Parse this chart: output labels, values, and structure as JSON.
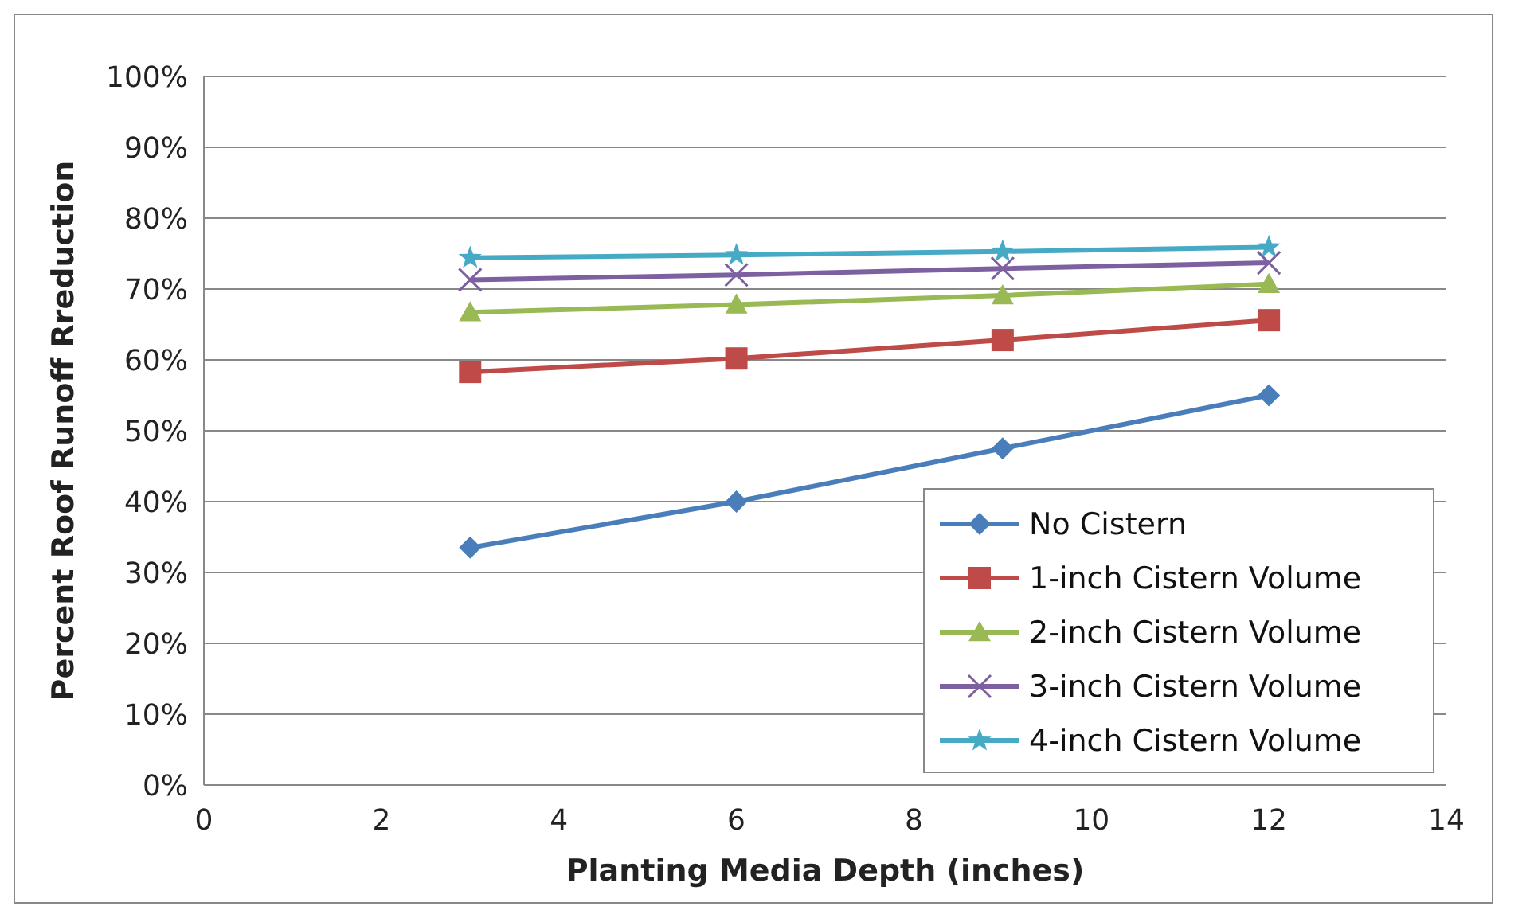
{
  "chart_data": {
    "type": "line",
    "xlabel": "Planting Media Depth (inches)",
    "ylabel": "Percent Roof Runoff Rreduction",
    "x": [
      3,
      6,
      9,
      12
    ],
    "series": [
      {
        "name": "No Cistern",
        "color": "#4a7ebb",
        "marker": "diamond",
        "values": [
          33.5,
          40,
          47.5,
          55
        ]
      },
      {
        "name": "1-inch Cistern Volume",
        "color": "#be4b48",
        "marker": "square",
        "values": [
          58.3,
          60.2,
          62.8,
          65.6
        ]
      },
      {
        "name": "2-inch Cistern Volume",
        "color": "#98b954",
        "marker": "triangle",
        "values": [
          66.7,
          67.8,
          69.1,
          70.7
        ]
      },
      {
        "name": "3-inch Cistern Volume",
        "color": "#7d60a0",
        "marker": "cross",
        "values": [
          71.3,
          72,
          72.9,
          73.7
        ]
      },
      {
        "name": "4-inch Cistern Volume",
        "color": "#46aac5",
        "marker": "star",
        "values": [
          74.4,
          74.8,
          75.3,
          75.9
        ]
      }
    ],
    "xlim": [
      0,
      14
    ],
    "xticks": [
      0,
      2,
      4,
      6,
      8,
      10,
      12,
      14
    ],
    "ylim": [
      0,
      100
    ],
    "yticks": [
      {
        "value": 0,
        "label": "0%"
      },
      {
        "value": 10,
        "label": "10%"
      },
      {
        "value": 20,
        "label": "20%"
      },
      {
        "value": 30,
        "label": "30%"
      },
      {
        "value": 40,
        "label": "40%"
      },
      {
        "value": 50,
        "label": "50%"
      },
      {
        "value": 60,
        "label": "60%"
      },
      {
        "value": 70,
        "label": "70%"
      },
      {
        "value": 80,
        "label": "80%"
      },
      {
        "value": 90,
        "label": "90%"
      },
      {
        "value": 100,
        "label": "100%"
      }
    ],
    "grid": "y",
    "legend": "bottom right"
  }
}
